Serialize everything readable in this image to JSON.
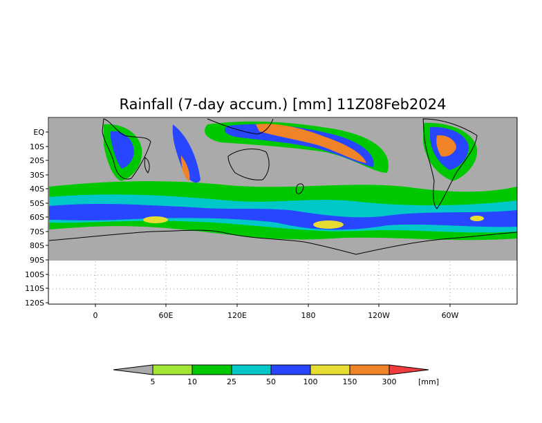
{
  "map": {
    "title": "Rainfall (7-day accum.) [mm] 11Z08Feb2024",
    "lat_labels": [
      "EQ",
      "10S",
      "20S",
      "30S",
      "40S",
      "50S",
      "60S",
      "70S",
      "80S",
      "90S",
      "100S",
      "110S",
      "120S"
    ],
    "lon_labels": [
      "0",
      "60E",
      "120E",
      "180",
      "120W",
      "60W"
    ],
    "colors": {
      "no_data": "#aaaaaa",
      "land_outline": "#000000",
      "grid_dots": "#999999"
    }
  },
  "colorbar": {
    "unit": "[mm]",
    "boundaries": [
      "5",
      "10",
      "25",
      "50",
      "100",
      "150",
      "300"
    ],
    "colors": [
      "#aaaaaa",
      "#a0e632",
      "#00c800",
      "#00c8c8",
      "#2846ff",
      "#e6dc32",
      "#f08228",
      "#f03c3c"
    ]
  }
}
